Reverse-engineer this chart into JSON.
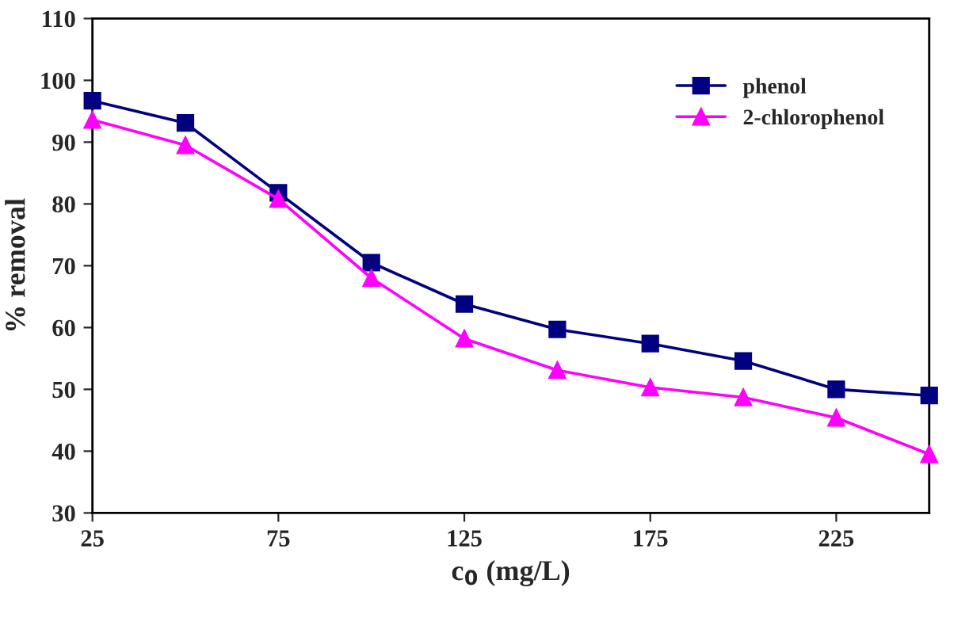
{
  "chart_data": {
    "type": "line",
    "xlabel": "c$_{0}$ (mg/L)",
    "ylabel": "% removal",
    "x": [
      25,
      50,
      75,
      100,
      125,
      150,
      175,
      200,
      225,
      250
    ],
    "series": [
      {
        "name": "phenol",
        "color": "#000080",
        "marker": "square",
        "values": [
          96.7,
          93.1,
          81.8,
          70.5,
          63.8,
          59.7,
          57.4,
          54.6,
          50.0,
          49.0
        ]
      },
      {
        "name": "2-chlorophenol",
        "color": "#ff00ff",
        "marker": "triangle",
        "values": [
          93.6,
          89.5,
          80.8,
          68.0,
          58.2,
          53.1,
          50.3,
          48.7,
          45.4,
          39.5
        ]
      }
    ],
    "xlim": [
      25,
      250
    ],
    "xticks": [
      25,
      75,
      125,
      175,
      225
    ],
    "ylim": [
      30,
      110
    ],
    "yticks": [
      30,
      40,
      50,
      60,
      70,
      80,
      90,
      100,
      110
    ],
    "grid": false,
    "legend": "top right",
    "line_style": "solid"
  }
}
